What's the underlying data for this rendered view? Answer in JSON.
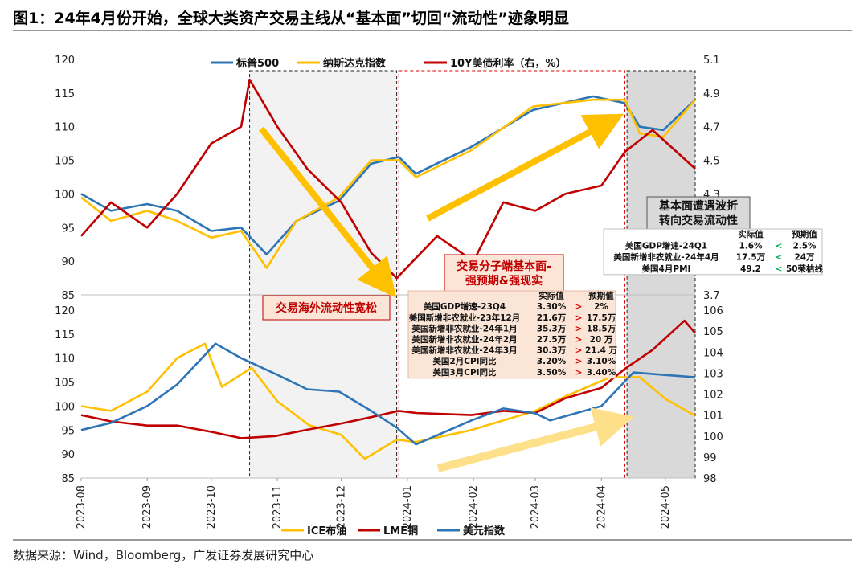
{
  "figure": {
    "title": "图1：24年4月份开始，全球大类资产交易主线从“基本面”切回“流动性”迹象明显",
    "source": "数据来源：Wind，Bloomberg，广发证券发展研究中心"
  },
  "shaded_periods": [
    {
      "start": "2023-10-19",
      "end": "2023-12-27",
      "style": "gray-shaded",
      "label": "交易海外流动性宽松"
    },
    {
      "start": "2023-12-28",
      "end": "2024-04-12",
      "style": "red-dashed",
      "label": "交易分子端基本面-\n强预期&强现实"
    },
    {
      "start": "2024-04-13",
      "end": "2024-05-15",
      "style": "gray-shaded",
      "label": "基本面遭遇波折\n转向交易流动性"
    }
  ],
  "tables": {
    "jan_mar": {
      "headers": [
        "",
        "实际值",
        "",
        "预期值"
      ],
      "rows": [
        [
          "美国GDP增速-23Q4",
          "3.30%",
          ">",
          "2%"
        ],
        [
          "美国新增非农就业-23年12月",
          "21.6万",
          ">",
          "17.5万"
        ],
        [
          "美国新增非农就业-24年1月",
          "35.3万",
          ">",
          "18.5万"
        ],
        [
          "美国新增非农就业-24年2月",
          "27.5万",
          ">",
          "20 万"
        ],
        [
          "美国新增非农就业-24年3月",
          "30.3万",
          ">",
          "21.4 万"
        ],
        [
          "美国2月CPI同比",
          "3.20%",
          ">",
          "3.10%"
        ],
        [
          "美国3月CPI同比",
          "3.50%",
          ">",
          "3.40%"
        ]
      ]
    },
    "april": {
      "headers": [
        "",
        "实际值",
        "",
        "预期值"
      ],
      "rows": [
        [
          "美国GDP增速-24Q1",
          "1.6%",
          "<",
          "2.5%"
        ],
        [
          "美国新增非农就业-24年4月",
          "17.5万",
          "<",
          "24万"
        ],
        [
          "美国4月PMI",
          "49.2",
          "<",
          "50荣枯线"
        ]
      ]
    }
  },
  "chart_data": [
    {
      "type": "line",
      "xlim": [
        "2023-08-01",
        "2024-05-15"
      ],
      "ylim_left": [
        85,
        120
      ],
      "yticks_left": [
        85,
        90,
        95,
        100,
        105,
        110,
        115,
        120
      ],
      "ylim_right": [
        3.7,
        5.1
      ],
      "yticks_right": [
        "3.7",
        "3.9",
        "4.1",
        "4.3",
        "4.5",
        "4.7",
        "4.9",
        "5.1"
      ],
      "legend_position": "top",
      "series": [
        {
          "name": "标普500",
          "axis": "left",
          "color": "#2e75b6",
          "x": [
            "2023-08-01",
            "2023-08-15",
            "2023-09-01",
            "2023-09-15",
            "2023-10-01",
            "2023-10-15",
            "2023-10-27",
            "2023-11-10",
            "2023-11-30",
            "2023-12-15",
            "2023-12-28",
            "2024-01-05",
            "2024-01-31",
            "2024-02-29",
            "2024-03-28",
            "2024-04-12",
            "2024-04-19",
            "2024-04-30",
            "2024-05-15"
          ],
          "values": [
            100,
            97.5,
            98.5,
            97.5,
            94.5,
            95,
            91,
            96,
            99,
            104.5,
            105.5,
            103,
            107,
            112.5,
            114.5,
            113.5,
            110,
            109.5,
            114
          ]
        },
        {
          "name": "纳斯达克指数",
          "axis": "left",
          "color": "#ffc000",
          "x": [
            "2023-08-01",
            "2023-08-15",
            "2023-09-01",
            "2023-09-15",
            "2023-10-01",
            "2023-10-15",
            "2023-10-27",
            "2023-11-10",
            "2023-11-30",
            "2023-12-15",
            "2023-12-28",
            "2024-01-05",
            "2024-01-31",
            "2024-02-29",
            "2024-03-28",
            "2024-04-12",
            "2024-04-19",
            "2024-04-30",
            "2024-05-15"
          ],
          "values": [
            99.5,
            96,
            97.5,
            96,
            93.5,
            94.5,
            89,
            96,
            99.5,
            105,
            105,
            102.5,
            106.5,
            113,
            114,
            114,
            109,
            108.5,
            114
          ]
        },
        {
          "name": "10Y美债利率（右，%）",
          "axis": "right",
          "color": "#c00000",
          "x": [
            "2023-08-01",
            "2023-08-15",
            "2023-09-01",
            "2023-09-15",
            "2023-10-01",
            "2023-10-15",
            "2023-10-19",
            "2023-11-01",
            "2023-11-15",
            "2023-12-01",
            "2023-12-15",
            "2023-12-27",
            "2024-01-15",
            "2024-02-01",
            "2024-02-15",
            "2024-03-01",
            "2024-03-15",
            "2024-04-01",
            "2024-04-12",
            "2024-04-25",
            "2024-05-15"
          ],
          "values": [
            4.05,
            4.25,
            4.1,
            4.3,
            4.6,
            4.7,
            4.98,
            4.7,
            4.45,
            4.25,
            3.95,
            3.8,
            4.05,
            3.9,
            4.25,
            4.2,
            4.3,
            4.35,
            4.55,
            4.68,
            4.45
          ]
        }
      ]
    },
    {
      "type": "line",
      "xlim": [
        "2023-08-01",
        "2024-05-15"
      ],
      "x_tick_labels": [
        "2023-08",
        "2023-09",
        "2023-10",
        "2023-11",
        "2023-12",
        "2024-01",
        "2024-02",
        "2024-03",
        "2024-04",
        "2024-05"
      ],
      "ylim_left": [
        85,
        120
      ],
      "yticks_left": [
        85,
        90,
        95,
        100,
        105,
        110,
        115,
        120
      ],
      "ylim_right": [
        98,
        106
      ],
      "yticks_right": [
        98,
        99,
        100,
        101,
        102,
        103,
        104,
        105,
        106
      ],
      "legend_position": "bottom",
      "series": [
        {
          "name": "ICE布油",
          "axis": "left",
          "color": "#ffc000",
          "x": [
            "2023-08-01",
            "2023-08-15",
            "2023-09-01",
            "2023-09-15",
            "2023-09-28",
            "2023-10-06",
            "2023-10-20",
            "2023-11-01",
            "2023-11-16",
            "2023-12-01",
            "2023-12-12",
            "2023-12-27",
            "2024-01-05",
            "2024-01-31",
            "2024-02-15",
            "2024-03-01",
            "2024-03-15",
            "2024-04-05",
            "2024-04-19",
            "2024-05-01",
            "2024-05-15"
          ],
          "values": [
            100,
            99,
            103,
            110,
            113,
            104,
            108,
            101,
            96,
            94,
            89,
            93,
            92.5,
            95,
            97,
            99,
            102,
            106,
            106,
            101.5,
            98
          ]
        },
        {
          "name": "LME铜",
          "axis": "right",
          "color": "#c00000",
          "x": [
            "2023-08-01",
            "2023-08-15",
            "2023-09-01",
            "2023-09-15",
            "2023-10-01",
            "2023-10-15",
            "2023-10-31",
            "2023-11-15",
            "2023-12-01",
            "2023-12-15",
            "2023-12-28",
            "2024-01-05",
            "2024-01-31",
            "2024-02-15",
            "2024-03-01",
            "2024-03-15",
            "2024-04-01",
            "2024-04-12",
            "2024-04-25",
            "2024-05-10",
            "2024-05-15"
          ],
          "values": [
            101,
            100.7,
            100.5,
            100.5,
            100.2,
            99.9,
            100,
            100.3,
            100.6,
            100.9,
            101.2,
            101.1,
            101,
            101.2,
            101.1,
            101.8,
            102.3,
            103.2,
            104.1,
            105.5,
            104.9
          ]
        },
        {
          "name": "美元指数",
          "axis": "left",
          "color": "#2e75b6",
          "x": [
            "2023-08-01",
            "2023-08-15",
            "2023-09-01",
            "2023-09-15",
            "2023-10-03",
            "2023-10-15",
            "2023-11-01",
            "2023-11-15",
            "2023-11-30",
            "2023-12-15",
            "2023-12-27",
            "2024-01-05",
            "2024-01-31",
            "2024-02-15",
            "2024-03-01",
            "2024-03-08",
            "2024-04-01",
            "2024-04-16",
            "2024-04-30",
            "2024-05-15"
          ],
          "values": [
            95,
            96.5,
            100,
            104.5,
            113,
            110,
            106.5,
            103.5,
            103,
            99,
            95.5,
            92,
            97,
            99.5,
            98.5,
            97,
            100,
            107,
            106.5,
            106
          ]
        }
      ]
    }
  ]
}
